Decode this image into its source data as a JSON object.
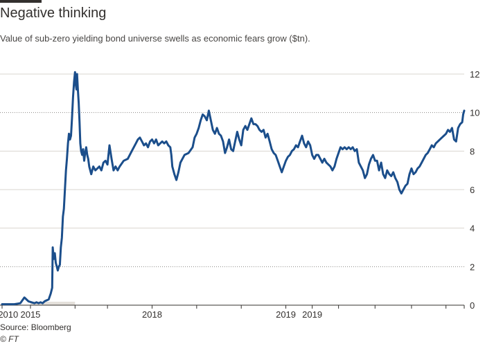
{
  "header": {
    "title": "Negative thinking",
    "subtitle": "Value of sub-zero yielding bond universe swells as economic fears grow ($tn)."
  },
  "footer": {
    "source": "Source: Bloomberg",
    "copyright": "© FT"
  },
  "colors": {
    "line": "#1b4e8b",
    "grid": "#d9d5cf",
    "gridDark": "#8a8784",
    "axis": "#33302e",
    "shade": "#e4e0db"
  },
  "chart_data": {
    "type": "line",
    "title": "Negative thinking",
    "subtitle": "Value of sub-zero yielding bond universe swells as economic fears grow ($tn).",
    "ylabel": "",
    "xlabel": "",
    "ylim": [
      0,
      12
    ],
    "y_ticks": [
      0,
      2,
      4,
      6,
      8,
      10,
      12
    ],
    "grid": true,
    "legend": "none",
    "x_tick_labels": [
      {
        "label": "2010",
        "x": 3
      },
      {
        "label": "2015",
        "x": 14
      },
      {
        "label": "2018",
        "x": 74
      },
      {
        "label": "2019",
        "x": 140
      },
      {
        "label": "2019",
        "x": 153
      }
    ],
    "series": [
      {
        "values": [
          [
            0,
            0.05
          ],
          [
            6,
            0.05
          ],
          [
            9,
            0.1
          ],
          [
            11,
            0.4
          ],
          [
            13,
            0.2
          ],
          [
            16,
            0.1
          ],
          [
            17,
            0.15
          ],
          [
            18,
            0.1
          ],
          [
            19,
            0.15
          ],
          [
            20,
            0.1
          ],
          [
            21,
            0.2
          ],
          [
            23,
            0.3
          ],
          [
            24,
            0.6
          ],
          [
            24.7,
            0.9
          ],
          [
            25,
            3.0
          ],
          [
            25.5,
            2.4
          ],
          [
            26,
            2.7
          ],
          [
            26.5,
            2.2
          ],
          [
            27,
            2.0
          ],
          [
            27.5,
            1.8
          ],
          [
            28,
            2.0
          ],
          [
            28.5,
            2.1
          ],
          [
            29,
            3.0
          ],
          [
            29.5,
            3.5
          ],
          [
            30,
            4.6
          ],
          [
            30.5,
            5.0
          ],
          [
            31,
            6.0
          ],
          [
            31.5,
            7.0
          ],
          [
            32,
            7.6
          ],
          [
            32.5,
            8.4
          ],
          [
            33,
            8.9
          ],
          [
            33.5,
            8.6
          ],
          [
            34,
            8.8
          ],
          [
            34.5,
            9.7
          ],
          [
            35,
            10.8
          ],
          [
            35.5,
            11.6
          ],
          [
            36,
            12.1
          ],
          [
            36.3,
            11.5
          ],
          [
            36.7,
            11.2
          ],
          [
            37,
            12.0
          ],
          [
            37.4,
            11.2
          ],
          [
            37.8,
            10.5
          ],
          [
            38.2,
            9.5
          ],
          [
            38.6,
            8.4
          ],
          [
            39,
            8.0
          ],
          [
            39.5,
            7.8
          ],
          [
            40,
            8.1
          ],
          [
            40.5,
            7.5
          ],
          [
            41,
            7.9
          ],
          [
            41.5,
            8.2
          ],
          [
            42,
            7.8
          ],
          [
            42.5,
            7.6
          ],
          [
            43,
            7.2
          ],
          [
            44,
            6.8
          ],
          [
            45,
            7.2
          ],
          [
            46,
            7.0
          ],
          [
            47,
            7.1
          ],
          [
            48,
            7.2
          ],
          [
            49,
            7.0
          ],
          [
            50,
            7.4
          ],
          [
            51,
            7.5
          ],
          [
            52,
            7.3
          ],
          [
            53,
            8.3
          ],
          [
            54,
            7.6
          ],
          [
            55,
            7.0
          ],
          [
            56,
            7.2
          ],
          [
            57,
            7.0
          ],
          [
            58,
            7.2
          ],
          [
            60,
            7.5
          ],
          [
            62,
            7.6
          ],
          [
            64,
            8.0
          ],
          [
            66,
            8.4
          ],
          [
            67,
            8.6
          ],
          [
            68,
            8.7
          ],
          [
            69,
            8.5
          ],
          [
            70,
            8.3
          ],
          [
            71,
            8.4
          ],
          [
            72,
            8.2
          ],
          [
            73,
            8.5
          ],
          [
            74,
            8.6
          ],
          [
            75,
            8.4
          ],
          [
            76,
            8.6
          ],
          [
            77,
            8.3
          ],
          [
            78,
            8.4
          ],
          [
            79,
            8.5
          ],
          [
            80,
            8.4
          ],
          [
            81,
            8.5
          ],
          [
            82,
            8.3
          ],
          [
            83,
            8.2
          ],
          [
            83.5,
            7.8
          ],
          [
            84,
            7.2
          ],
          [
            85,
            6.8
          ],
          [
            86,
            6.5
          ],
          [
            87,
            6.9
          ],
          [
            88,
            7.4
          ],
          [
            90,
            7.8
          ],
          [
            92,
            7.9
          ],
          [
            94,
            8.2
          ],
          [
            95,
            8.7
          ],
          [
            96,
            8.9
          ],
          [
            97,
            9.2
          ],
          [
            98,
            9.6
          ],
          [
            99,
            9.9
          ],
          [
            100,
            9.8
          ],
          [
            101,
            9.6
          ],
          [
            102,
            10.1
          ],
          [
            103,
            9.6
          ],
          [
            104,
            9.1
          ],
          [
            105,
            8.9
          ],
          [
            106,
            9.2
          ],
          [
            107,
            8.9
          ],
          [
            108,
            8.8
          ],
          [
            109,
            8.5
          ],
          [
            110,
            7.9
          ],
          [
            111,
            8.2
          ],
          [
            112,
            8.6
          ],
          [
            113,
            8.1
          ],
          [
            114,
            8.0
          ],
          [
            115,
            8.5
          ],
          [
            116,
            9.0
          ],
          [
            117,
            8.6
          ],
          [
            118,
            8.3
          ],
          [
            119,
            9.1
          ],
          [
            120,
            9.3
          ],
          [
            121,
            9.1
          ],
          [
            122,
            9.4
          ],
          [
            123,
            9.7
          ],
          [
            124,
            9.4
          ],
          [
            125,
            9.4
          ],
          [
            126,
            9.3
          ],
          [
            127,
            9.1
          ],
          [
            128,
            9.0
          ],
          [
            129,
            9.1
          ],
          [
            130,
            8.7
          ],
          [
            131,
            8.9
          ],
          [
            132,
            8.5
          ],
          [
            133,
            8.1
          ],
          [
            134,
            7.9
          ],
          [
            135,
            7.8
          ],
          [
            136,
            7.5
          ],
          [
            137,
            7.2
          ],
          [
            138,
            6.9
          ],
          [
            139,
            7.2
          ],
          [
            140,
            7.5
          ],
          [
            141,
            7.7
          ],
          [
            142,
            7.8
          ],
          [
            143,
            8.0
          ],
          [
            144,
            8.1
          ],
          [
            145,
            8.3
          ],
          [
            146,
            8.2
          ],
          [
            147,
            8.5
          ],
          [
            148,
            8.8
          ],
          [
            149,
            8.4
          ],
          [
            150,
            8.2
          ],
          [
            151,
            8.5
          ],
          [
            152,
            8.3
          ],
          [
            153,
            7.8
          ],
          [
            154,
            7.6
          ],
          [
            155,
            7.8
          ],
          [
            156,
            7.8
          ],
          [
            157,
            7.6
          ],
          [
            158,
            7.4
          ],
          [
            159,
            7.6
          ],
          [
            160,
            7.4
          ],
          [
            161,
            7.3
          ],
          [
            162,
            7.2
          ],
          [
            163,
            7.0
          ],
          [
            164,
            7.2
          ],
          [
            165,
            7.6
          ],
          [
            166,
            7.9
          ],
          [
            167,
            8.2
          ],
          [
            168,
            8.1
          ],
          [
            169,
            8.2
          ],
          [
            170,
            8.1
          ],
          [
            171,
            8.2
          ],
          [
            172,
            8.1
          ],
          [
            173,
            8.2
          ],
          [
            174,
            8.0
          ],
          [
            175,
            8.1
          ],
          [
            176,
            7.4
          ],
          [
            177,
            7.2
          ],
          [
            178,
            7.0
          ],
          [
            179,
            6.6
          ],
          [
            180,
            6.8
          ],
          [
            181,
            7.3
          ],
          [
            182,
            7.6
          ],
          [
            183,
            7.8
          ],
          [
            184,
            7.5
          ],
          [
            185,
            7.5
          ],
          [
            186,
            7.0
          ],
          [
            187,
            7.4
          ],
          [
            188,
            6.8
          ],
          [
            189,
            6.6
          ],
          [
            190,
            7.0
          ],
          [
            191,
            6.8
          ],
          [
            192,
            6.7
          ],
          [
            193,
            6.9
          ],
          [
            194,
            6.6
          ],
          [
            195,
            6.4
          ],
          [
            196,
            6.0
          ],
          [
            197,
            5.8
          ],
          [
            198,
            6.0
          ],
          [
            199,
            6.2
          ],
          [
            200,
            6.3
          ],
          [
            201,
            6.8
          ],
          [
            202,
            7.1
          ],
          [
            203,
            6.8
          ],
          [
            204,
            6.9
          ],
          [
            205,
            7.1
          ],
          [
            206,
            7.2
          ],
          [
            207,
            7.4
          ],
          [
            208,
            7.6
          ],
          [
            209,
            7.8
          ],
          [
            210,
            7.9
          ],
          [
            211,
            8.1
          ],
          [
            212,
            8.3
          ],
          [
            213,
            8.2
          ],
          [
            214,
            8.4
          ],
          [
            215,
            8.5
          ],
          [
            216,
            8.6
          ],
          [
            217,
            8.7
          ],
          [
            218,
            8.8
          ],
          [
            219,
            8.9
          ],
          [
            220,
            9.1
          ],
          [
            221,
            9.0
          ],
          [
            222,
            9.2
          ],
          [
            223,
            8.6
          ],
          [
            224,
            8.5
          ],
          [
            225,
            9.2
          ],
          [
            226,
            9.4
          ],
          [
            227,
            9.5
          ],
          [
            227.5,
            9.9
          ],
          [
            228,
            10.1
          ]
        ]
      }
    ],
    "x_range": [
      0,
      228
    ]
  }
}
